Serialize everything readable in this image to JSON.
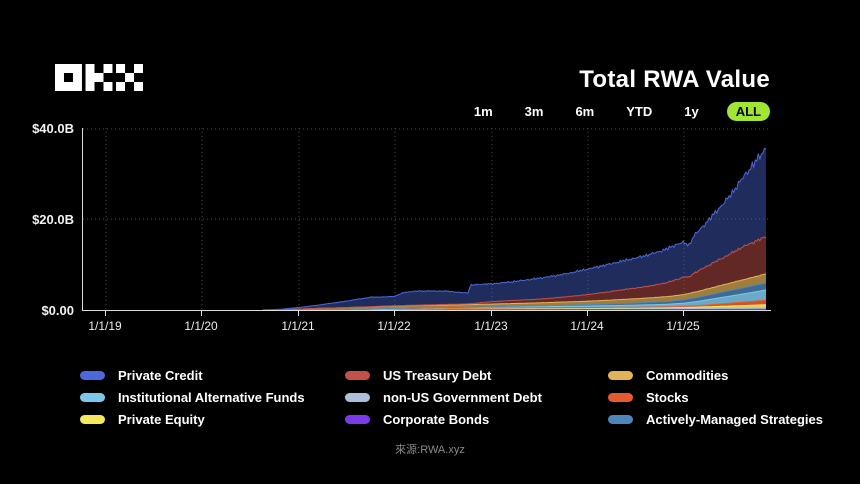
{
  "header": {
    "logo": "OKX",
    "title": "Total RWA Value"
  },
  "time_ranges": {
    "options": [
      "1m",
      "3m",
      "6m",
      "YTD",
      "1y",
      "ALL"
    ],
    "active": "ALL",
    "active_bg": "#9FE635"
  },
  "colors": {
    "Private Credit": "#4D68DC",
    "Institutional Alternative Funds": "#7DC8EA",
    "Private Equity": "#F4E95C",
    "US Treasury Debt": "#C4504A",
    "non-US Government Debt": "#AEBFDC",
    "Corporate Bonds": "#7B3BE8",
    "Commodities": "#E2B357",
    "Stocks": "#E55B2D",
    "Actively-Managed Strategies": "#4E86B8"
  },
  "legend": {
    "columns": [
      [
        "Private Credit",
        "Institutional Alternative Funds",
        "Private Equity"
      ],
      [
        "US Treasury Debt",
        "non-US Government Debt",
        "Corporate Bonds"
      ],
      [
        "Commodities",
        "Stocks",
        "Actively-Managed Strategies"
      ]
    ]
  },
  "chart_data": {
    "type": "area",
    "stacked": true,
    "title": "Total RWA Value",
    "y_unit": "USD billions",
    "ylim": [
      0,
      40
    ],
    "y_tick_labels": [
      "$40.0B",
      "$20.0B",
      "$0.00"
    ],
    "x_ticks": [
      "1/1/19",
      "1/1/20",
      "1/1/21",
      "1/1/22",
      "1/1/23",
      "1/1/24",
      "1/1/25"
    ],
    "x_range": [
      2019.0,
      2025.85
    ],
    "grid": "dotted",
    "legend_position": "bottom",
    "series": [
      {
        "name": "Corporate Bonds",
        "fill_opacity": 0.9,
        "points": [
          [
            2019,
            0
          ],
          [
            2021.5,
            0
          ],
          [
            2021.8,
            0.04
          ],
          [
            2022.5,
            0.08
          ],
          [
            2023.5,
            0.1
          ],
          [
            2024.5,
            0.1
          ],
          [
            2025.3,
            0.12
          ],
          [
            2025.85,
            0.15
          ]
        ]
      },
      {
        "name": "non-US Government Debt",
        "fill_opacity": 0.9,
        "points": [
          [
            2019,
            0
          ],
          [
            2021.7,
            0
          ],
          [
            2021.9,
            0.08
          ],
          [
            2022.2,
            0.15
          ],
          [
            2022.6,
            0.18
          ],
          [
            2023.0,
            0.2
          ],
          [
            2024.0,
            0.22
          ],
          [
            2025.0,
            0.22
          ],
          [
            2025.5,
            0.25
          ],
          [
            2025.85,
            0.28
          ]
        ]
      },
      {
        "name": "Private Equity",
        "fill_opacity": 0.9,
        "points": [
          [
            2019,
            0
          ],
          [
            2020.9,
            0
          ],
          [
            2021.2,
            0.04
          ],
          [
            2022.0,
            0.06
          ],
          [
            2023.0,
            0.08
          ],
          [
            2024.0,
            0.12
          ],
          [
            2024.8,
            0.18
          ],
          [
            2025.1,
            0.28
          ],
          [
            2025.4,
            0.45
          ],
          [
            2025.65,
            0.6
          ],
          [
            2025.85,
            0.72
          ]
        ]
      },
      {
        "name": "Stocks",
        "fill_opacity": 0.9,
        "points": [
          [
            2019,
            0
          ],
          [
            2021.0,
            0
          ],
          [
            2021.3,
            0.03
          ],
          [
            2022.0,
            0.05
          ],
          [
            2023.0,
            0.06
          ],
          [
            2024.0,
            0.1
          ],
          [
            2024.6,
            0.15
          ],
          [
            2025.0,
            0.22
          ],
          [
            2025.2,
            0.35
          ],
          [
            2025.4,
            0.55
          ],
          [
            2025.6,
            0.75
          ],
          [
            2025.85,
            1.0
          ]
        ]
      },
      {
        "name": "Institutional Alternative Funds",
        "fill_opacity": 0.85,
        "points": [
          [
            2019,
            0
          ],
          [
            2021.4,
            0
          ],
          [
            2021.6,
            0.05
          ],
          [
            2022.0,
            0.1
          ],
          [
            2022.5,
            0.15
          ],
          [
            2023.0,
            0.2
          ],
          [
            2023.5,
            0.25
          ],
          [
            2024.0,
            0.32
          ],
          [
            2024.4,
            0.42
          ],
          [
            2024.8,
            0.55
          ],
          [
            2025.0,
            0.7
          ],
          [
            2025.15,
            0.95
          ],
          [
            2025.3,
            1.25
          ],
          [
            2025.5,
            1.6
          ],
          [
            2025.7,
            1.95
          ],
          [
            2025.85,
            2.25
          ]
        ]
      },
      {
        "name": "Actively-Managed Strategies",
        "fill_opacity": 0.8,
        "points": [
          [
            2019,
            0
          ],
          [
            2022.7,
            0
          ],
          [
            2022.9,
            0.08
          ],
          [
            2023.3,
            0.15
          ],
          [
            2023.8,
            0.25
          ],
          [
            2024.2,
            0.35
          ],
          [
            2024.6,
            0.5
          ],
          [
            2024.9,
            0.65
          ],
          [
            2025.1,
            0.85
          ],
          [
            2025.3,
            1.05
          ],
          [
            2025.5,
            1.25
          ],
          [
            2025.7,
            1.42
          ],
          [
            2025.85,
            1.55
          ]
        ]
      },
      {
        "name": "Commodities",
        "fill_opacity": 0.7,
        "jitter": true,
        "points": [
          [
            2019,
            0
          ],
          [
            2020.8,
            0
          ],
          [
            2020.9,
            0.1
          ],
          [
            2021.1,
            0.25
          ],
          [
            2021.3,
            0.35
          ],
          [
            2021.6,
            0.45
          ],
          [
            2022.0,
            0.5
          ],
          [
            2022.5,
            0.55
          ],
          [
            2023.0,
            0.58
          ],
          [
            2023.5,
            0.65
          ],
          [
            2024.0,
            0.78
          ],
          [
            2024.5,
            0.95
          ],
          [
            2024.9,
            1.1
          ],
          [
            2025.1,
            1.25
          ],
          [
            2025.3,
            1.45
          ],
          [
            2025.5,
            1.65
          ],
          [
            2025.7,
            1.85
          ],
          [
            2025.85,
            2.0
          ]
        ]
      },
      {
        "name": "US Treasury Debt",
        "fill_opacity": 0.5,
        "jitter": true,
        "points": [
          [
            2019,
            0
          ],
          [
            2021.5,
            0
          ],
          [
            2021.8,
            0.05
          ],
          [
            2022.3,
            0.1
          ],
          [
            2022.8,
            0.2
          ],
          [
            2022.95,
            0.45
          ],
          [
            2023.1,
            0.6
          ],
          [
            2023.4,
            0.75
          ],
          [
            2023.6,
            0.9
          ],
          [
            2023.9,
            1.3
          ],
          [
            2024.0,
            1.45
          ],
          [
            2024.2,
            1.8
          ],
          [
            2024.4,
            2.2
          ],
          [
            2024.6,
            2.5
          ],
          [
            2024.8,
            3.0
          ],
          [
            2024.95,
            3.6
          ],
          [
            2025.0,
            3.9
          ],
          [
            2025.05,
            3.5
          ],
          [
            2025.1,
            4.2
          ],
          [
            2025.2,
            4.8
          ],
          [
            2025.3,
            5.4
          ],
          [
            2025.45,
            6.2
          ],
          [
            2025.6,
            7.2
          ],
          [
            2025.75,
            7.8
          ],
          [
            2025.85,
            8.1
          ]
        ]
      },
      {
        "name": "Private Credit",
        "fill_opacity": 0.42,
        "jitter": true,
        "points": [
          [
            2019,
            0
          ],
          [
            2020.6,
            0
          ],
          [
            2020.75,
            0.1
          ],
          [
            2021.0,
            0.35
          ],
          [
            2021.2,
            0.7
          ],
          [
            2021.4,
            1.2
          ],
          [
            2021.6,
            1.7
          ],
          [
            2021.75,
            2.1
          ],
          [
            2021.9,
            2.0
          ],
          [
            2022.0,
            2.1
          ],
          [
            2022.1,
            2.9
          ],
          [
            2022.25,
            3.1
          ],
          [
            2022.4,
            3.0
          ],
          [
            2022.55,
            2.9
          ],
          [
            2022.65,
            2.6
          ],
          [
            2022.76,
            2.4
          ],
          [
            2022.78,
            4.1
          ],
          [
            2022.95,
            4.0
          ],
          [
            2023.0,
            3.9
          ],
          [
            2023.2,
            4.1
          ],
          [
            2023.5,
            4.6
          ],
          [
            2023.75,
            5.0
          ],
          [
            2024.0,
            5.6
          ],
          [
            2024.25,
            6.1
          ],
          [
            2024.5,
            6.6
          ],
          [
            2024.75,
            7.2
          ],
          [
            2024.95,
            7.8
          ],
          [
            2025.0,
            7.5
          ],
          [
            2025.05,
            7.0
          ],
          [
            2025.1,
            8.2
          ],
          [
            2025.2,
            9.3
          ],
          [
            2025.3,
            10.5
          ],
          [
            2025.4,
            11.8
          ],
          [
            2025.5,
            13.2
          ],
          [
            2025.6,
            15.0
          ],
          [
            2025.7,
            16.8
          ],
          [
            2025.78,
            18.2
          ],
          [
            2025.85,
            19.6
          ]
        ]
      }
    ],
    "source": "來源:RWA.xyz"
  },
  "footer": {
    "source": "來源:RWA.xyz"
  }
}
